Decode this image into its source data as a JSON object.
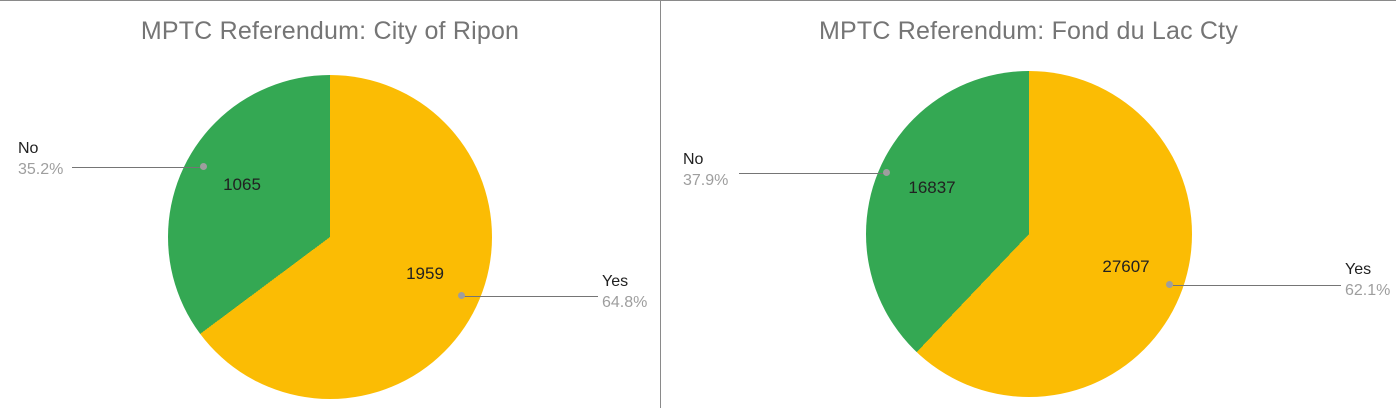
{
  "chart_data": [
    {
      "type": "pie",
      "title": "MPTC Referendum: City of Ripon",
      "legend": "none",
      "label_style": "outside-callouts-with-leader-lines",
      "slices": [
        {
          "label": "Yes",
          "value": 1959,
          "percent": 64.8,
          "percent_label": "64.8%",
          "color": "#FBBC04"
        },
        {
          "label": "No",
          "value": 1065,
          "percent": 35.2,
          "percent_label": "35.2%",
          "color": "#34A853"
        }
      ]
    },
    {
      "type": "pie",
      "title": "MPTC Referendum: Fond du Lac Cty",
      "legend": "none",
      "label_style": "outside-callouts-with-leader-lines",
      "slices": [
        {
          "label": "Yes",
          "value": 27607,
          "percent": 62.1,
          "percent_label": "62.1%",
          "color": "#FBBC04"
        },
        {
          "label": "No",
          "value": 16837,
          "percent": 37.9,
          "percent_label": "37.9%",
          "color": "#34A853"
        }
      ]
    }
  ]
}
